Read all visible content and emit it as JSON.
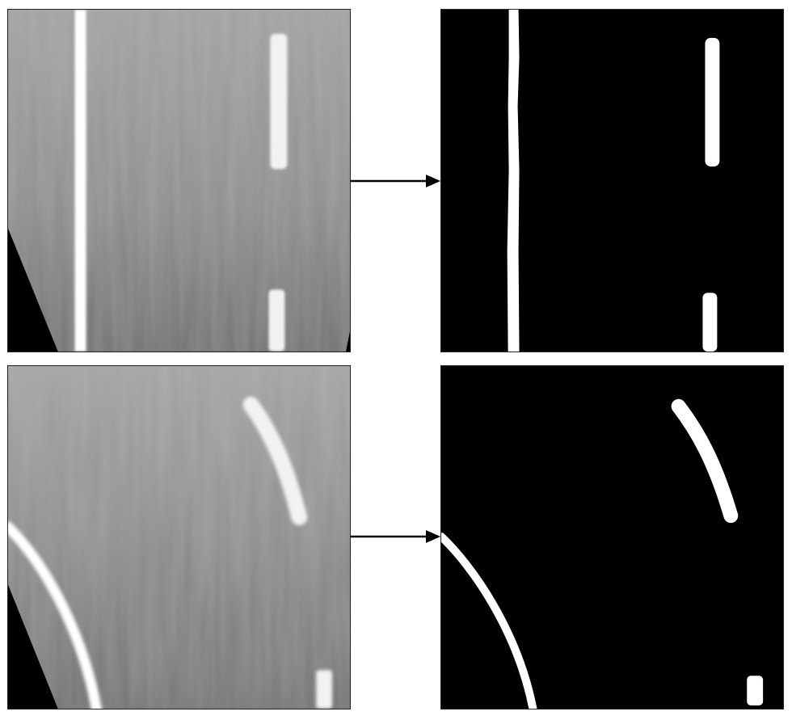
{
  "figure": {
    "rows": [
      {
        "input": {
          "icon": "road-topview-straight-icon"
        },
        "arrow": {
          "icon": "arrow-right-icon"
        },
        "output": {
          "icon": "binary-lane-mask-straight-icon"
        }
      },
      {
        "input": {
          "icon": "road-topview-curved-icon"
        },
        "arrow": {
          "icon": "arrow-right-icon"
        },
        "output": {
          "icon": "binary-lane-mask-curved-icon"
        }
      }
    ],
    "colors": {
      "road_gray": "#8c8c8c",
      "lane_white": "#ffffff",
      "mask_background": "#000000",
      "arrow": "#000000"
    }
  }
}
